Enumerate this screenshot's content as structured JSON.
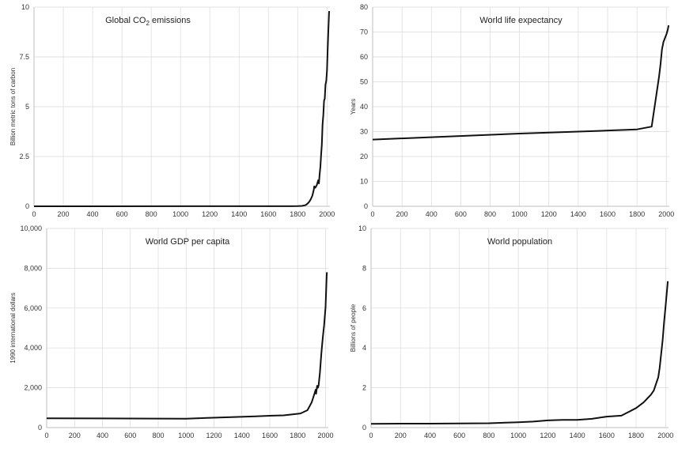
{
  "chart_data": [
    {
      "type": "line",
      "title": "Global CO2 emissions",
      "title_parts": [
        "Global CO",
        "2",
        " emissions"
      ],
      "xlabel": "",
      "ylabel": "Billion metric tons of carbon",
      "xlim": [
        0,
        2020
      ],
      "ylim": [
        0,
        10
      ],
      "xticks": [
        0,
        200,
        400,
        600,
        800,
        1000,
        1200,
        1400,
        1600,
        1800,
        2000
      ],
      "xtick_labels": [
        "0",
        "200",
        "400",
        "600",
        "800",
        "1000",
        "1200",
        "1400",
        "1600",
        "1800",
        "2000"
      ],
      "yticks": [
        0,
        2.5,
        5,
        7.5,
        10
      ],
      "ytick_labels": [
        "0",
        "2.5",
        "5",
        "7.5",
        "10"
      ],
      "grid": true,
      "series": [
        {
          "x": [
            0,
            1750,
            1800,
            1830,
            1850,
            1860,
            1870,
            1880,
            1890,
            1900,
            1910,
            1913,
            1920,
            1930,
            1940,
            1945,
            1950,
            1955,
            1960,
            1965,
            1970,
            1975,
            1980,
            1985,
            1990,
            1995,
            2000,
            2005,
            2010,
            2014,
            2015
          ],
          "y": [
            0,
            0.003,
            0.008,
            0.02,
            0.05,
            0.09,
            0.15,
            0.24,
            0.36,
            0.53,
            0.82,
            1.0,
            0.93,
            1.05,
            1.3,
            1.15,
            1.6,
            2.0,
            2.6,
            3.1,
            4.1,
            4.6,
            5.3,
            5.4,
            6.1,
            6.3,
            6.8,
            7.9,
            8.9,
            9.7,
            9.8
          ]
        }
      ]
    },
    {
      "type": "line",
      "title": "World life expectancy",
      "xlabel": "",
      "ylabel": "Years",
      "xlim": [
        0,
        2020
      ],
      "ylim": [
        0,
        80
      ],
      "xticks": [
        0,
        200,
        400,
        600,
        800,
        1000,
        1200,
        1400,
        1600,
        1800,
        2000
      ],
      "xtick_labels": [
        "0",
        "200",
        "400",
        "600",
        "800",
        "1000",
        "1200",
        "1400",
        "1600",
        "1800",
        "2000"
      ],
      "yticks": [
        0,
        10,
        20,
        30,
        40,
        50,
        60,
        70,
        80
      ],
      "ytick_labels": [
        "0",
        "10",
        "20",
        "30",
        "40",
        "50",
        "60",
        "70",
        "80"
      ],
      "grid": true,
      "series": [
        {
          "x": [
            0,
            1000,
            1500,
            1800,
            1900,
            1950,
            1960,
            1970,
            1980,
            1990,
            2000,
            2010,
            2015
          ],
          "y": [
            26.8,
            29.2,
            30.2,
            30.9,
            32,
            52,
            57,
            63,
            66,
            67.5,
            69,
            71,
            72.7
          ]
        }
      ]
    },
    {
      "type": "line",
      "title": "World GDP per capita",
      "xlabel": "",
      "ylabel": "1990 international dollars",
      "xlim": [
        0,
        2020
      ],
      "ylim": [
        0,
        10000
      ],
      "xticks": [
        0,
        200,
        400,
        600,
        800,
        1000,
        1200,
        1400,
        1600,
        1800,
        2000
      ],
      "xtick_labels": [
        "0",
        "200",
        "400",
        "600",
        "800",
        "1000",
        "1200",
        "1400",
        "1600",
        "1800",
        "2000"
      ],
      "yticks": [
        0,
        2000,
        4000,
        6000,
        8000,
        10000
      ],
      "ytick_labels": [
        "0",
        "2,000",
        "4,000",
        "6,000",
        "8,000",
        "10,000"
      ],
      "grid": true,
      "series": [
        {
          "x": [
            0,
            1000,
            1500,
            1600,
            1700,
            1820,
            1870,
            1900,
            1913,
            1929,
            1932,
            1940,
            1945,
            1950,
            1960,
            1970,
            1980,
            1990,
            2000,
            2008,
            2010
          ],
          "y": [
            467,
            450,
            566,
            596,
            616,
            712,
            873,
            1262,
            1526,
            1900,
            1700,
            2100,
            2000,
            2113,
            2775,
            3729,
            4520,
            5150,
            6050,
            7600,
            7800
          ]
        }
      ]
    },
    {
      "type": "line",
      "title": "World population",
      "xlabel": "",
      "ylabel": "Billions of people",
      "xlim": [
        0,
        2020
      ],
      "ylim": [
        0,
        10
      ],
      "xticks": [
        0,
        200,
        400,
        600,
        800,
        1000,
        1200,
        1400,
        1600,
        1800,
        2000
      ],
      "xtick_labels": [
        "0",
        "200",
        "400",
        "600",
        "800",
        "1000",
        "1200",
        "1400",
        "1600",
        "1800",
        "2000"
      ],
      "yticks": [
        0,
        2,
        4,
        6,
        8,
        10
      ],
      "ytick_labels": [
        "0",
        "2",
        "4",
        "6",
        "8",
        "10"
      ],
      "grid": true,
      "series": [
        {
          "x": [
            0,
            200,
            400,
            600,
            800,
            1000,
            1100,
            1200,
            1300,
            1400,
            1500,
            1600,
            1700,
            1750,
            1800,
            1850,
            1900,
            1920,
            1940,
            1950,
            1960,
            1970,
            1980,
            1990,
            2000,
            2010,
            2015
          ],
          "y": [
            0.19,
            0.2,
            0.2,
            0.21,
            0.22,
            0.27,
            0.3,
            0.36,
            0.39,
            0.39,
            0.44,
            0.55,
            0.6,
            0.79,
            0.98,
            1.26,
            1.65,
            1.86,
            2.3,
            2.52,
            3.0,
            3.7,
            4.4,
            5.3,
            6.1,
            6.9,
            7.35
          ]
        }
      ]
    }
  ]
}
